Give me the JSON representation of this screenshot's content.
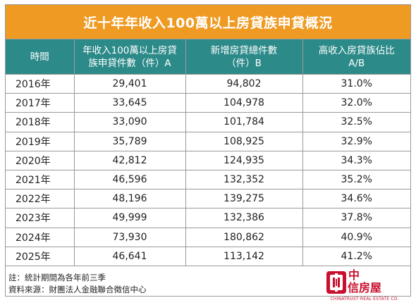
{
  "title": "近十年年收入100萬以上房貸族申貸概況",
  "headers": [
    [
      "時間"
    ],
    [
      "年收入100萬以上房貸",
      "族申貸件數（件）A"
    ],
    [
      "新增房貸總件數",
      "（件）B"
    ],
    [
      "高收入房貸族佔比",
      "A/B"
    ]
  ],
  "rows": [
    [
      "2016年",
      "29,401",
      "94,802",
      "31.0%"
    ],
    [
      "2017年",
      "33,645",
      "104,978",
      "32.0%"
    ],
    [
      "2018年",
      "33,090",
      "101,784",
      "32.5%"
    ],
    [
      "2019年",
      "35,789",
      "108,925",
      "32.9%"
    ],
    [
      "2020年",
      "42,812",
      "124,935",
      "34.3%"
    ],
    [
      "2021年",
      "46,596",
      "132,352",
      "35.2%"
    ],
    [
      "2022年",
      "48,196",
      "139,275",
      "34.6%"
    ],
    [
      "2023年",
      "49,999",
      "132,386",
      "37.8%"
    ],
    [
      "2024年",
      "73,930",
      "180,862",
      "40.9%"
    ],
    [
      "2025年",
      "46,641",
      "113,142",
      "41.2%"
    ]
  ],
  "notes": [
    "註：統計期間為各年前三季",
    "資料來源：財團法人金融聯合徵信中心"
  ],
  "logo": {
    "name_line1": "中",
    "name_line2": "信房屋",
    "english": "CHINATRUST·REAL ESTATE CO.",
    "brand_color": "#c8102e"
  },
  "colors": {
    "title_bg": "#ef9a22",
    "header_bg": "#2c8a89"
  }
}
